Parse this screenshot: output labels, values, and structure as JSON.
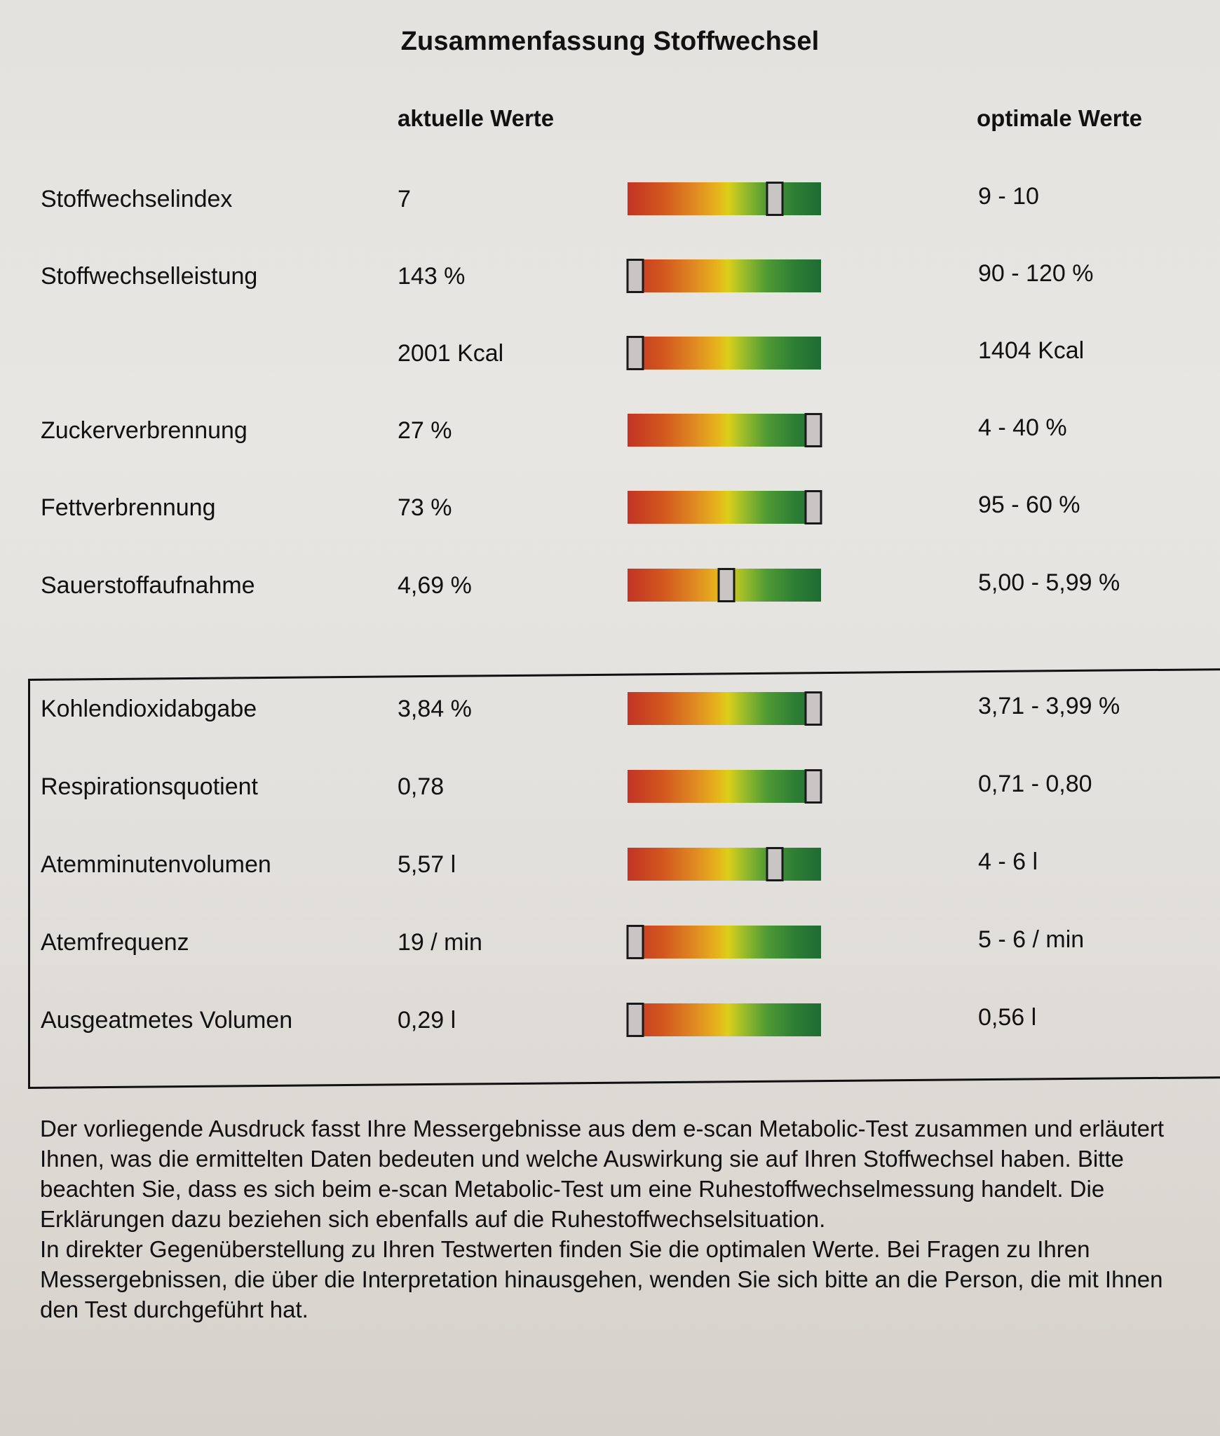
{
  "document": {
    "title": "Zusammenfassung Stoffwechsel",
    "column_headers": {
      "current": "aktuelle Werte",
      "optimal": "optimale Werte"
    },
    "rows": [
      {
        "label": "Stoffwechselindex",
        "value": "7",
        "optimal": "9 - 10",
        "marker_pct": 76
      },
      {
        "label": "Stoffwechselleistung",
        "value": "143 %",
        "optimal": "90 - 120 %",
        "marker_pct": 4
      },
      {
        "label": "",
        "value": "2001 Kcal",
        "optimal": "1404 Kcal",
        "marker_pct": 4
      },
      {
        "label": "Zuckerverbrennung",
        "value": "27 %",
        "optimal": "4 - 40 %",
        "marker_pct": 96
      },
      {
        "label": "Fettverbrennung",
        "value": "73 %",
        "optimal": "95 - 60 %",
        "marker_pct": 96
      },
      {
        "label": "Sauerstoffaufnahme",
        "value": "4,69 %",
        "optimal": "5,00 - 5,99 %",
        "marker_pct": 51
      },
      {
        "label": "Kohlendioxidabgabe",
        "value": "3,84 %",
        "optimal": "3,71 - 3,99 %",
        "marker_pct": 96
      },
      {
        "label": "Respirationsquotient",
        "value": "0,78",
        "optimal": "0,71 - 0,80",
        "marker_pct": 96
      },
      {
        "label": "Atemminutenvolumen",
        "value": "5,57 l",
        "optimal": "4 - 6 l",
        "marker_pct": 76
      },
      {
        "label": "Atemfrequenz",
        "value": "19 / min",
        "optimal": "5 - 6 / min",
        "marker_pct": 4
      },
      {
        "label": "Ausgeatmetes Volumen",
        "value": "0,29 l",
        "optimal": "0,56 l",
        "marker_pct": 4
      }
    ],
    "gauge_colors": {
      "low": "#c23424",
      "mid_low": "#e08a22",
      "mid": "#dccf1a",
      "mid_high": "#4f9a34",
      "high": "#1f6b33",
      "marker_fill": "#c9c5c5",
      "marker_border": "#1a1a1a"
    },
    "paragraphs": [
      "Der vorliegende Ausdruck fasst Ihre Messergebnisse aus dem e-scan Metabolic-Test zusammen und erläutert Ihnen, was die  ermittelten Daten bedeuten und welche Auswirkung sie auf Ihren Stoffwechsel haben. Bitte beachten Sie, dass es sich beim e-scan Metabolic-Test um eine Ruhestoffwechselmessung handelt. Die Erklärungen dazu beziehen sich ebenfalls auf die Ruhestoffwechselsituation.",
      "In direkter Gegenüberstellung zu Ihren Testwerten finden Sie die optimalen Werte. Bei Fragen zu Ihren Messergebnissen, die über die Interpretation hinausgehen, wenden Sie sich bitte an die Person, die mit Ihnen den Test durchgeführt hat."
    ]
  }
}
